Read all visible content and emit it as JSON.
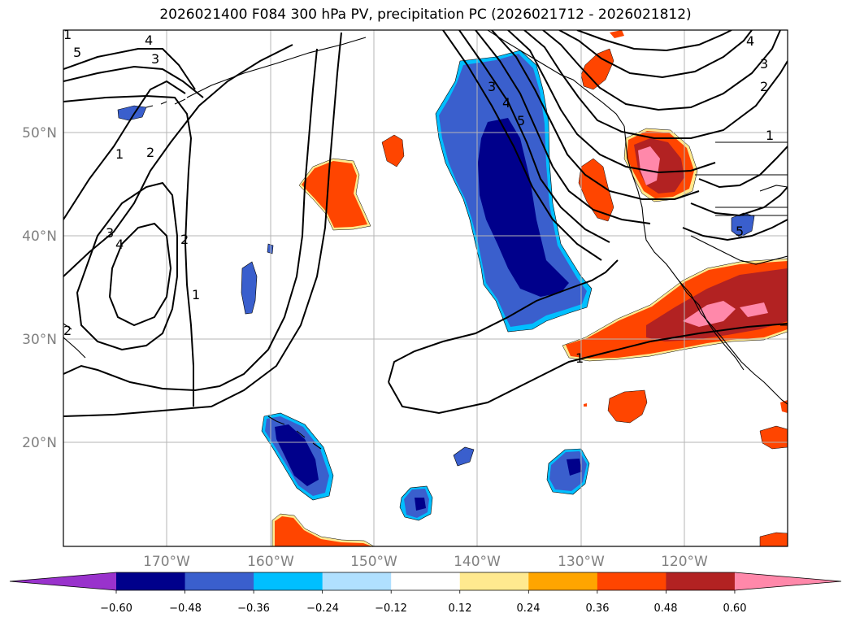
{
  "title": "2026021400 F084 300 hPa PV, precipitation PC (2026021712 - 2026021812)",
  "map": {
    "lat_labels": [
      "50°N",
      "40°N",
      "30°N",
      "20°N"
    ],
    "lon_labels": [
      "170°W",
      "160°W",
      "150°W",
      "140°W",
      "130°W",
      "120°W"
    ],
    "contour_labels": [
      "5",
      "4",
      "3",
      "2",
      "1",
      "2",
      "1",
      "4",
      "3",
      "2",
      "1",
      "3",
      "4",
      "5",
      "4",
      "3",
      "2",
      "1",
      "1",
      "5"
    ]
  },
  "colorbar": {
    "ticks": [
      "−0.60",
      "−0.48",
      "−0.36",
      "−0.24",
      "−0.12",
      "0.12",
      "0.24",
      "0.36",
      "0.48",
      "0.60"
    ],
    "colors": [
      "#9932cc",
      "#00008b",
      "#3a5fcd",
      "#00bfff",
      "#b0e0ff",
      "#ffffff",
      "#ffe98f",
      "#ffa500",
      "#ff4500",
      "#b22222",
      "#ff88aa"
    ]
  }
}
